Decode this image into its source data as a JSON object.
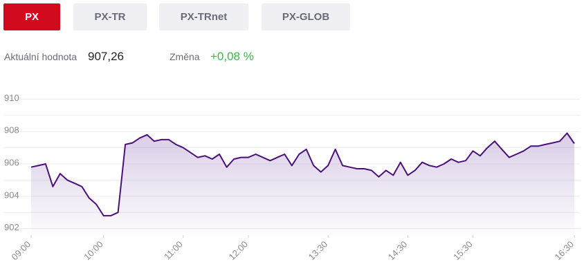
{
  "tabs": [
    "PX",
    "PX-TR",
    "PX-TRnet",
    "PX-GLOB"
  ],
  "active_tab": "PX",
  "info": {
    "value_label": "Aktuální hodnota",
    "value": "907,26",
    "change_label": "Změna",
    "change": "+0,08 %"
  },
  "chart_data": {
    "type": "line",
    "series": [
      {
        "color": "#4a0f78",
        "values": [
          905.8,
          905.9,
          906.0,
          904.6,
          905.4,
          905.0,
          904.8,
          904.6,
          903.9,
          903.5,
          902.8,
          902.8,
          903.0,
          907.2,
          907.3,
          907.6,
          907.8,
          907.4,
          907.5,
          907.5,
          907.2,
          907.0,
          906.7,
          906.4,
          906.5,
          906.3,
          906.6,
          905.8,
          906.3,
          906.4,
          906.4,
          906.6,
          906.4,
          906.2,
          906.4,
          906.6,
          905.9,
          906.6,
          906.9,
          905.9,
          905.5,
          905.9,
          906.9,
          905.9,
          905.8,
          905.7,
          905.7,
          905.6,
          905.2,
          905.6,
          905.3,
          906.1,
          905.3,
          905.6,
          906.1,
          905.9,
          905.8,
          906.0,
          906.3,
          906.1,
          906.2,
          906.8,
          906.5,
          907.0,
          907.4,
          906.9,
          906.4,
          906.6,
          906.8,
          907.1,
          907.1,
          907.2,
          907.3,
          907.4,
          907.9,
          907.26
        ]
      }
    ],
    "xlim": [
      0,
      75
    ],
    "xticks": [
      {
        "value": 0,
        "label": "09:00"
      },
      {
        "value": 10,
        "label": "10:00"
      },
      {
        "value": 21,
        "label": "11:00"
      },
      {
        "value": 30,
        "label": "12:00"
      },
      {
        "value": 41,
        "label": "13:30"
      },
      {
        "value": 52,
        "label": "14:30"
      },
      {
        "value": 61,
        "label": "15:30"
      },
      {
        "value": 75,
        "label": "16:30"
      }
    ],
    "ylim": [
      901.6,
      910.7
    ],
    "yticks": [
      902,
      904,
      906,
      908,
      910
    ],
    "grid_lines": [
      902,
      903,
      904,
      905,
      906,
      907,
      908,
      909,
      910
    ]
  }
}
